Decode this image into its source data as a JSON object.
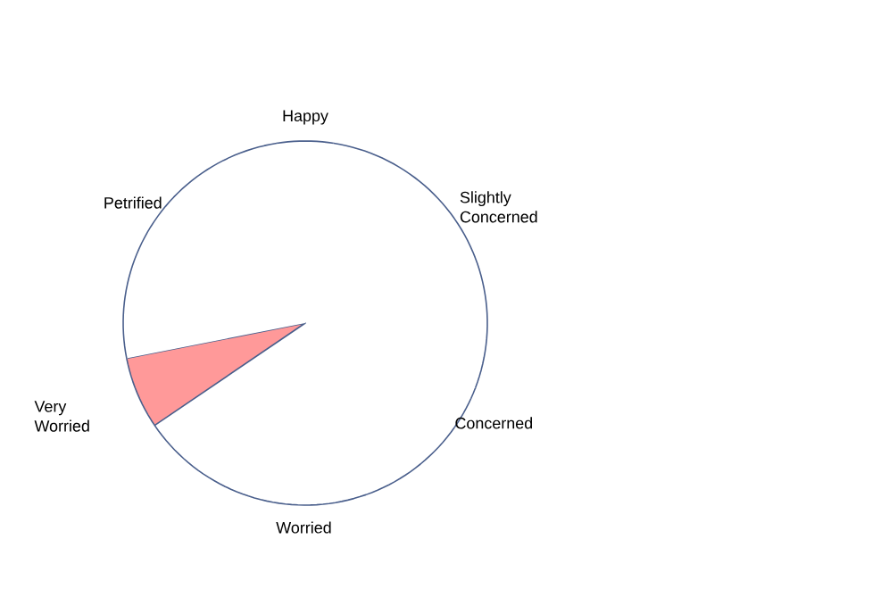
{
  "chart_data": {
    "type": "pie",
    "categories": [
      "Happy",
      "Slightly Concerned",
      "Concerned",
      "Worried",
      "Very Worried",
      "Petrified"
    ],
    "values": [
      5.0,
      28.3,
      3.9,
      30.8,
      6.4,
      25.6
    ],
    "colors": [
      "#ffffff",
      "#ffffff",
      "#ffffff",
      "#ffffff",
      "#ff9999",
      "#ffffff"
    ]
  }
}
